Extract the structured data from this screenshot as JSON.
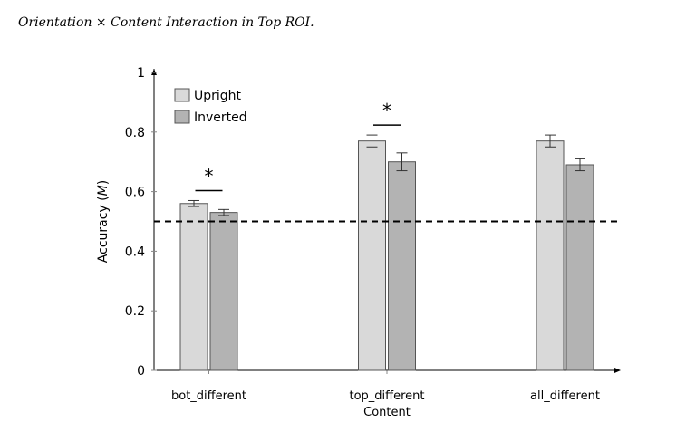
{
  "chart_data": {
    "type": "bar",
    "title": "Orientation × Content Interaction in Top ROI.",
    "xlabel": "Content",
    "ylabel_prefix": "Accuracy (",
    "ylabel_var": "M",
    "ylabel_suffix": ")",
    "ylim": [
      0,
      1
    ],
    "yticks": [
      0,
      0.2,
      0.4,
      0.6,
      0.8,
      1
    ],
    "ytick_labels": [
      "0",
      "0.2",
      "0.4",
      "0.6",
      "0.8",
      "1"
    ],
    "categories": [
      "bot_different",
      "top_different",
      "all_different"
    ],
    "series": [
      {
        "name": "Upright",
        "color": "#d9d9d9",
        "values": [
          0.56,
          0.77,
          0.77
        ],
        "errors": [
          0.01,
          0.02,
          0.02
        ]
      },
      {
        "name": "Inverted",
        "color": "#b3b3b3",
        "values": [
          0.53,
          0.7,
          0.69
        ],
        "errors": [
          0.01,
          0.03,
          0.02
        ]
      }
    ],
    "reference_line": 0.5,
    "significance": [
      {
        "category": "bot_different",
        "label": "*"
      },
      {
        "category": "top_different",
        "label": "*"
      }
    ],
    "legend_position": "top-left",
    "grid": false
  }
}
